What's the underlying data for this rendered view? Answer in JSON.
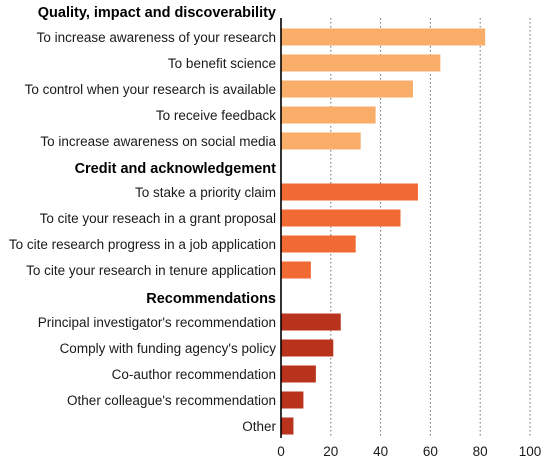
{
  "chart_data": {
    "type": "bar",
    "orientation": "horizontal",
    "xlim": [
      0,
      100
    ],
    "xticks": [
      "0",
      "20",
      "40",
      "60",
      "80",
      "100"
    ],
    "grid": "vertical dotted lines at 20, 40, 60, 80, 100",
    "colors": {
      "quality": "#f8ae68",
      "credit": "#f26a33",
      "recommendations": "#b9321c"
    },
    "groups": [
      {
        "key": "quality",
        "title": "Quality, impact and discoverability",
        "categories": [
          "To increase awareness of your research",
          "To benefit science",
          "To control when your research is available",
          "To receive feedback",
          "To increase awareness on social media"
        ],
        "values": [
          82,
          64,
          53,
          38,
          32
        ]
      },
      {
        "key": "credit",
        "title": "Credit and acknowledgement",
        "categories": [
          "To stake a priority claim",
          "To cite your reseach in a grant proposal",
          "To cite research progress in a job application",
          "To cite your research in tenure application"
        ],
        "values": [
          55,
          48,
          30,
          12
        ]
      },
      {
        "key": "recommendations",
        "title": "Recommendations",
        "categories": [
          "Principal investigator's recommendation",
          "Comply with funding agency's policy",
          "Co-author recommendation",
          "Other colleague's recommendation",
          "Other"
        ],
        "values": [
          24,
          21,
          14,
          9,
          5
        ]
      }
    ]
  }
}
